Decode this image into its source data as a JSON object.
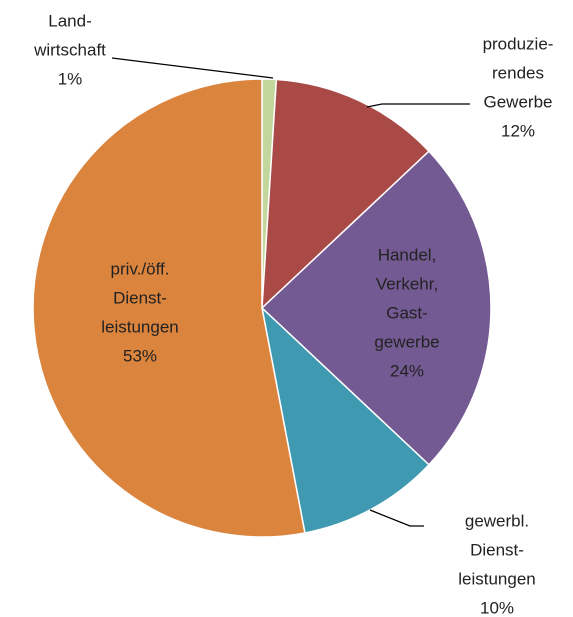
{
  "chart_data": {
    "type": "pie",
    "categories": [
      [
        "Land-",
        "wirtschaft"
      ],
      [
        "produzie-",
        "rendes",
        "Gewerbe"
      ],
      [
        "Handel,",
        "Verkehr,",
        "Gast-",
        "gewerbe"
      ],
      [
        "gewerbl.",
        "Dienst-",
        "leistungen"
      ],
      [
        "priv./öff.",
        "Dienst-",
        "leistungen"
      ]
    ],
    "values": [
      1,
      12,
      24,
      10,
      53
    ],
    "value_labels": [
      "1%",
      "12%",
      "24%",
      "10%",
      "53%"
    ],
    "colors": [
      "#c3d69b",
      "#a94a47",
      "#735a93",
      "#3f99b0",
      "#da843e"
    ]
  }
}
